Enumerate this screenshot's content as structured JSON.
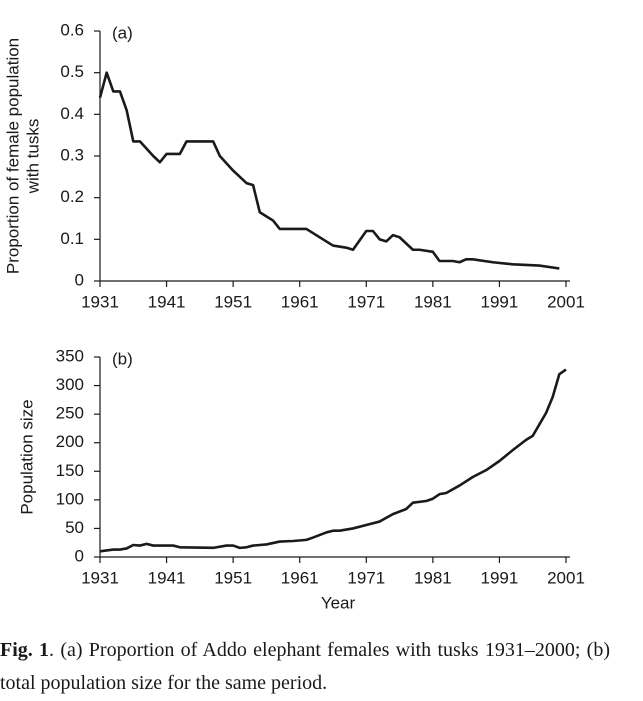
{
  "chart_data": [
    {
      "type": "line",
      "annotation": "(a)",
      "ylabel": [
        "Proportion of female population",
        "with tusks"
      ],
      "x": [
        1931,
        1932,
        1933,
        1934,
        1935,
        1936,
        1937,
        1939,
        1940,
        1941,
        1942,
        1943,
        1944,
        1948,
        1949,
        1951,
        1953,
        1954,
        1955,
        1957,
        1958,
        1962,
        1965,
        1966,
        1968,
        1969,
        1971,
        1972,
        1973,
        1974,
        1975,
        1976,
        1977,
        1978,
        1979,
        1981,
        1982,
        1984,
        1985,
        1986,
        1987,
        1990,
        1993,
        1997,
        2000
      ],
      "values": [
        0.44,
        0.5,
        0.455,
        0.455,
        0.41,
        0.335,
        0.335,
        0.3,
        0.285,
        0.305,
        0.305,
        0.305,
        0.335,
        0.335,
        0.3,
        0.265,
        0.235,
        0.23,
        0.165,
        0.145,
        0.125,
        0.125,
        0.095,
        0.085,
        0.08,
        0.075,
        0.12,
        0.12,
        0.1,
        0.095,
        0.11,
        0.105,
        0.09,
        0.075,
        0.075,
        0.07,
        0.048,
        0.048,
        0.045,
        0.052,
        0.052,
        0.045,
        0.04,
        0.037,
        0.03
      ],
      "color": "#1a1a1a",
      "xlim": [
        1931,
        2001
      ],
      "xticks": [
        1931,
        1941,
        1951,
        1961,
        1971,
        1981,
        1991,
        2001
      ],
      "ylim": [
        0,
        0.6
      ],
      "yticks": [
        0,
        0.1,
        0.2,
        0.3,
        0.4,
        0.5,
        0.6
      ]
    },
    {
      "type": "line",
      "annotation": "(b)",
      "ylabel": [
        "Population size"
      ],
      "xlabel": "Year",
      "x": [
        1931,
        1933,
        1934,
        1935,
        1936,
        1937,
        1938,
        1939,
        1942,
        1943,
        1948,
        1950,
        1951,
        1952,
        1953,
        1954,
        1956,
        1958,
        1960,
        1962,
        1963,
        1965,
        1966,
        1967,
        1969,
        1971,
        1973,
        1975,
        1977,
        1978,
        1980,
        1981,
        1982,
        1983,
        1985,
        1987,
        1989,
        1991,
        1993,
        1995,
        1996,
        1997,
        1998,
        1999,
        2000,
        2001
      ],
      "values": [
        10,
        13,
        13,
        15,
        21,
        20,
        23,
        20,
        20,
        17,
        16,
        20,
        20,
        16,
        17,
        20,
        22,
        27,
        28,
        30,
        34,
        43,
        46,
        46,
        50,
        56,
        62,
        75,
        84,
        95,
        98,
        102,
        110,
        112,
        125,
        140,
        152,
        168,
        187,
        205,
        212,
        232,
        252,
        280,
        320,
        328
      ],
      "color": "#1a1a1a",
      "xlim": [
        1931,
        2001
      ],
      "xticks": [
        1931,
        1941,
        1951,
        1961,
        1971,
        1981,
        1991,
        2001
      ],
      "ylim": [
        0,
        350
      ],
      "yticks": [
        0,
        50,
        100,
        150,
        200,
        250,
        300,
        350
      ]
    }
  ],
  "caption": {
    "label": "Fig. 1",
    "text": ". (a) Proportion of Addo elephant females with tusks 1931–2000; (b) total population size for the same period."
  }
}
